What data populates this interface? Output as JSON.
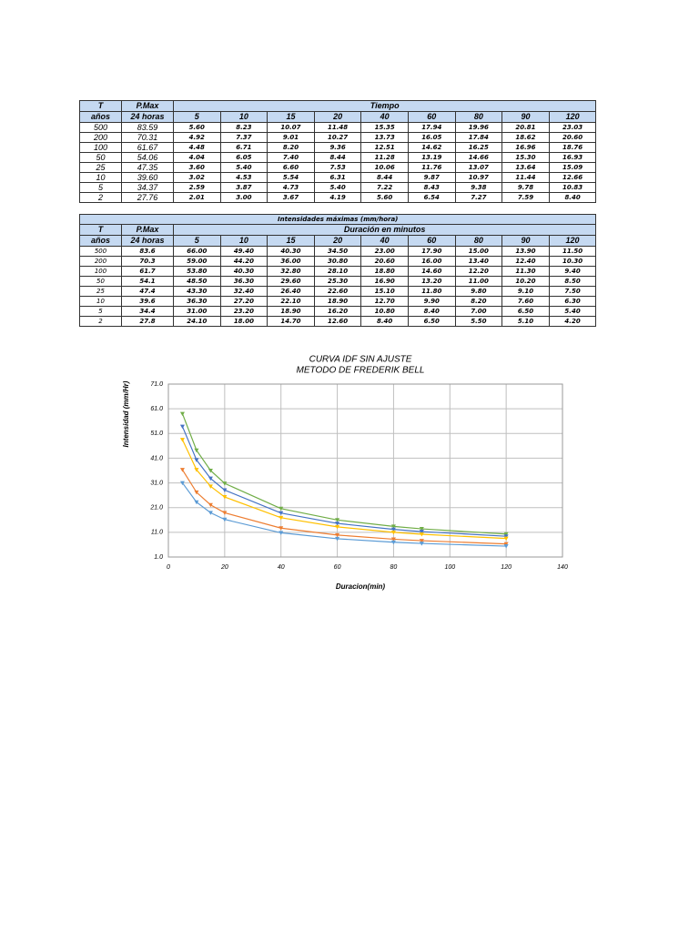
{
  "table1": {
    "header": [
      "T",
      "P.Max",
      "Tiempo"
    ],
    "subheader": [
      "años",
      "24 horas",
      "5",
      "10",
      "15",
      "20",
      "40",
      "60",
      "80",
      "90",
      "120"
    ],
    "rows": [
      [
        "500",
        "83.59",
        "5.60",
        "8.23",
        "10.07",
        "11.48",
        "15.35",
        "17.94",
        "19.96",
        "20.81",
        "23.03"
      ],
      [
        "200",
        "70.31",
        "4.92",
        "7.37",
        "9.01",
        "10.27",
        "13.73",
        "16.05",
        "17.84",
        "18.62",
        "20.60"
      ],
      [
        "100",
        "61.67",
        "4.48",
        "6.71",
        "8.20",
        "9.36",
        "12.51",
        "14.62",
        "16.25",
        "16.96",
        "18.76"
      ],
      [
        "50",
        "54.06",
        "4.04",
        "6.05",
        "7.40",
        "8.44",
        "11.28",
        "13.19",
        "14.66",
        "15.30",
        "16.93"
      ],
      [
        "25",
        "47.35",
        "3.60",
        "5.40",
        "6.60",
        "7.53",
        "10.06",
        "11.76",
        "13.07",
        "13.64",
        "15.09"
      ],
      [
        "10",
        "39.60",
        "3.02",
        "4.53",
        "5.54",
        "6.31",
        "8.44",
        "9.87",
        "10.97",
        "11.44",
        "12.66"
      ],
      [
        "5",
        "34.37",
        "2.59",
        "3.87",
        "4.73",
        "5.40",
        "7.22",
        "8.43",
        "9.38",
        "9.78",
        "10.83"
      ],
      [
        "2",
        "27.76",
        "2.01",
        "3.00",
        "3.67",
        "4.19",
        "5.60",
        "6.54",
        "7.27",
        "7.59",
        "8.40"
      ]
    ]
  },
  "table2": {
    "title": "Intensidades máximas (mm/hora)",
    "header": [
      "T",
      "P.Max",
      "Duración en minutos"
    ],
    "subheader": [
      "años",
      "24 horas",
      "5",
      "10",
      "15",
      "20",
      "40",
      "60",
      "80",
      "90",
      "120"
    ],
    "rows": [
      [
        "500",
        "83.6",
        "66.00",
        "49.40",
        "40.30",
        "34.50",
        "23.00",
        "17.90",
        "15.00",
        "13.90",
        "11.50"
      ],
      [
        "200",
        "70.3",
        "59.00",
        "44.20",
        "36.00",
        "30.80",
        "20.60",
        "16.00",
        "13.40",
        "12.40",
        "10.30"
      ],
      [
        "100",
        "61.7",
        "53.80",
        "40.30",
        "32.80",
        "28.10",
        "18.80",
        "14.60",
        "12.20",
        "11.30",
        "9.40"
      ],
      [
        "50",
        "54.1",
        "48.50",
        "36.30",
        "29.60",
        "25.30",
        "16.90",
        "13.20",
        "11.00",
        "10.20",
        "8.50"
      ],
      [
        "25",
        "47.4",
        "43.30",
        "32.40",
        "26.40",
        "22.60",
        "15.10",
        "11.80",
        "9.80",
        "9.10",
        "7.50"
      ],
      [
        "10",
        "39.6",
        "36.30",
        "27.20",
        "22.10",
        "18.90",
        "12.70",
        "9.90",
        "8.20",
        "7.60",
        "6.30"
      ],
      [
        "5",
        "34.4",
        "31.00",
        "23.20",
        "18.90",
        "16.20",
        "10.80",
        "8.40",
        "7.00",
        "6.50",
        "5.40"
      ],
      [
        "2",
        "27.8",
        "24.10",
        "18.00",
        "14.70",
        "12.60",
        "8.40",
        "6.50",
        "5.50",
        "5.10",
        "4.20"
      ]
    ]
  },
  "chart_data": {
    "type": "line",
    "title": "CURVA IDF SIN AJUSTE",
    "subtitle": "METODO DE FREDERIK BELL",
    "x_label": "Duracion(min)",
    "y_label": "Intensidad (mm/Hr)",
    "x": [
      5,
      10,
      15,
      20,
      40,
      60,
      80,
      90,
      120
    ],
    "series": [
      {
        "color": "#70ad47",
        "values": [
          59.0,
          44.2,
          36.0,
          30.8,
          20.6,
          16.0,
          13.4,
          12.4,
          10.3
        ]
      },
      {
        "color": "#4472c4",
        "values": [
          53.8,
          40.3,
          32.8,
          28.1,
          18.8,
          14.6,
          12.2,
          11.3,
          9.4
        ]
      },
      {
        "color": "#ffc000",
        "values": [
          48.5,
          36.3,
          29.6,
          25.3,
          16.9,
          13.2,
          11.0,
          10.2,
          8.5
        ]
      },
      {
        "color": "#ed7d31",
        "values": [
          36.3,
          27.2,
          22.1,
          18.9,
          12.7,
          9.9,
          8.2,
          7.6,
          6.3
        ]
      },
      {
        "color": "#5b9bd5",
        "values": [
          31.0,
          23.2,
          18.9,
          16.2,
          10.8,
          8.4,
          7.0,
          6.5,
          5.4
        ]
      }
    ],
    "xlim": [
      0,
      140
    ],
    "xticks": [
      0,
      20,
      40,
      60,
      80,
      100,
      120,
      140
    ],
    "ylim": [
      1,
      71
    ],
    "yticks": [
      {
        "value": 1,
        "label": "1.0"
      },
      {
        "value": 11,
        "label": "11.0"
      },
      {
        "value": 21,
        "label": "21.0"
      },
      {
        "value": 31,
        "label": "31.0"
      },
      {
        "value": 41,
        "label": "41.0"
      },
      {
        "value": 51,
        "label": "51.0"
      },
      {
        "value": 61,
        "label": "61.0"
      },
      {
        "value": 71,
        "label": "71.0"
      }
    ],
    "grid": true
  }
}
